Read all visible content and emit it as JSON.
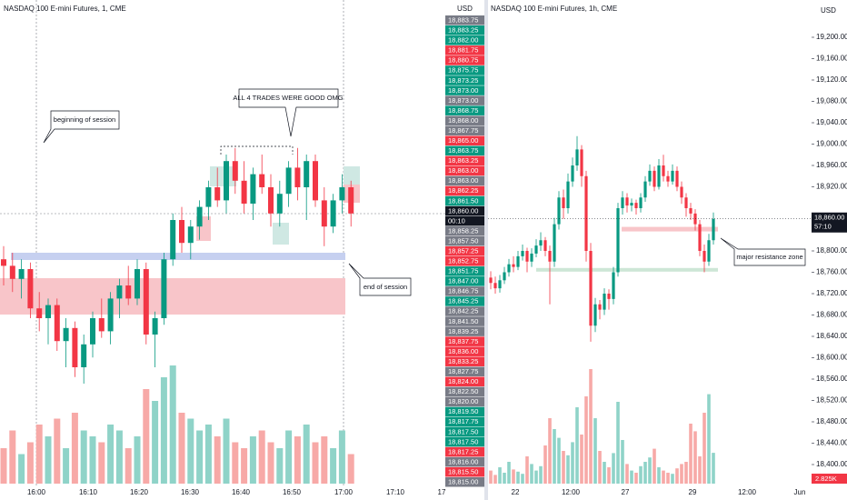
{
  "left": {
    "title": "NASDAQ 100 E-mini Futures, 1, CME",
    "currency": "USD",
    "annotations": [
      "beginning of session",
      "ALL 4 TRADES WERE GOOD OMG",
      "end of session"
    ],
    "xlabels": [
      "16:00",
      "16:10",
      "16:20",
      "16:30",
      "16:40",
      "16:50",
      "17:00",
      "17:10",
      "17"
    ],
    "ladder": [
      "18,883.75",
      "18,883.25",
      "18,882.00",
      "18,881.75",
      "18,880.75",
      "18,875.75",
      "18,873.25",
      "18,873.00",
      "18,873.00",
      "18,868.75",
      "18,868.00",
      "18,867.75",
      "18,865.00",
      "18,863.75",
      "18,863.25",
      "18,863.00",
      "18,863.00",
      "18,862.25",
      "18,861.50",
      "18,860.00",
      "00:10",
      "18,858.25",
      "18,857.50",
      "18,857.25",
      "18,852.75",
      "18,851.75",
      "18,847.00",
      "18,846.75",
      "18,845.25",
      "18,842.25",
      "18,841.50",
      "18,839.25",
      "18,837.75",
      "18,836.00",
      "18,833.25",
      "18,827.75",
      "18,824.00",
      "18,822.50",
      "18,820.00",
      "18,819.50",
      "18,817.75",
      "18,817.50",
      "18,817.50",
      "18,817.25",
      "18,816.00",
      "18,815.50",
      "18,815.00"
    ],
    "ladder_colors": [
      "#787b86",
      "#089981",
      "#089981",
      "#f23645",
      "#f23645",
      "#089981",
      "#089981",
      "#089981",
      "#787b86",
      "#089981",
      "#787b86",
      "#787b86",
      "#f23645",
      "#089981",
      "#f23645",
      "#f23645",
      "#787b86",
      "#f23645",
      "#089981",
      "#131722",
      "#131722",
      "#787b86",
      "#787b86",
      "#f23645",
      "#f23645",
      "#089981",
      "#089981",
      "#787b86",
      "#089981",
      "#787b86",
      "#787b86",
      "#787b86",
      "#f23645",
      "#f23645",
      "#f23645",
      "#787b86",
      "#f23645",
      "#787b86",
      "#787b86",
      "#089981",
      "#089981",
      "#089981",
      "#089981",
      "#f23645",
      "#787b86",
      "#f23645",
      "#787b86"
    ],
    "up_color": "#089981",
    "down_color": "#f23645",
    "candles": [
      [
        18848,
        18852,
        18840,
        18846
      ],
      [
        18846,
        18850,
        18838,
        18842
      ],
      [
        18842,
        18848,
        18836,
        18845
      ],
      [
        18845,
        18847,
        18830,
        18833
      ],
      [
        18833,
        18838,
        18826,
        18830
      ],
      [
        18830,
        18836,
        18822,
        18834
      ],
      [
        18834,
        18836,
        18820,
        18823
      ],
      [
        18823,
        18830,
        18815,
        18827
      ],
      [
        18827,
        18829,
        18812,
        18815
      ],
      [
        18815,
        18825,
        18810,
        18822
      ],
      [
        18822,
        18832,
        18818,
        18830
      ],
      [
        18830,
        18836,
        18824,
        18826
      ],
      [
        18826,
        18838,
        18822,
        18836
      ],
      [
        18836,
        18842,
        18830,
        18840
      ],
      [
        18840,
        18846,
        18834,
        18836
      ],
      [
        18836,
        18848,
        18834,
        18845
      ],
      [
        18845,
        18847,
        18822,
        18825
      ],
      [
        18825,
        18832,
        18815,
        18830
      ],
      [
        18830,
        18850,
        18828,
        18848
      ],
      [
        18848,
        18862,
        18846,
        18860
      ],
      [
        18860,
        18864,
        18850,
        18853
      ],
      [
        18853,
        18860,
        18848,
        18858
      ],
      [
        18858,
        18866,
        18854,
        18864
      ],
      [
        18864,
        18872,
        18860,
        18870
      ],
      [
        18870,
        18876,
        18864,
        18866
      ],
      [
        18866,
        18880,
        18862,
        18878
      ],
      [
        18878,
        18882,
        18868,
        18872
      ],
      [
        18872,
        18878,
        18862,
        18865
      ],
      [
        18865,
        18876,
        18860,
        18874
      ],
      [
        18874,
        18880,
        18868,
        18870
      ],
      [
        18870,
        18874,
        18858,
        18862
      ],
      [
        18862,
        18872,
        18858,
        18868
      ],
      [
        18868,
        18878,
        18864,
        18876
      ],
      [
        18876,
        18882,
        18866,
        18870
      ],
      [
        18870,
        18880,
        18860,
        18878
      ],
      [
        18878,
        18880,
        18864,
        18866
      ],
      [
        18866,
        18870,
        18852,
        18858
      ],
      [
        18858,
        18868,
        18856,
        18866
      ],
      [
        18866,
        18874,
        18862,
        18870
      ],
      [
        18870,
        18872,
        18858,
        18862
      ]
    ],
    "volume": [
      30,
      45,
      25,
      35,
      50,
      40,
      55,
      30,
      60,
      45,
      40,
      35,
      50,
      45,
      30,
      40,
      80,
      70,
      90,
      100,
      60,
      55,
      45,
      50,
      40,
      55,
      35,
      30,
      40,
      45,
      35,
      30,
      45,
      40,
      50,
      35,
      40,
      30,
      45,
      25
    ]
  },
  "right": {
    "title": "NASDAQ 100 E-mini Futures, 1h, CME",
    "currency": "USD",
    "annotation": "major resistance zone",
    "price": 18860,
    "price_label": "18,860.00",
    "countdown": "57:10",
    "volume_label": "2.825K",
    "xlabels": [
      "22",
      "12:00",
      "27",
      "29",
      "12:00",
      "Jun"
    ],
    "yticks": [
      {
        "value": 19200,
        "label": "19,200.00"
      },
      {
        "value": 19160,
        "label": "19,160.00"
      },
      {
        "value": 19120,
        "label": "19,120.00"
      },
      {
        "value": 19080,
        "label": "19,080.00"
      },
      {
        "value": 19040,
        "label": "19,040.00"
      },
      {
        "value": 19000,
        "label": "19,000.00"
      },
      {
        "value": 18960,
        "label": "18,960.00"
      },
      {
        "value": 18920,
        "label": "18,920.00"
      },
      {
        "value": 18800,
        "label": "18,800.00"
      },
      {
        "value": 18760,
        "label": "18,760.00"
      },
      {
        "value": 18720,
        "label": "18,720.00"
      },
      {
        "value": 18680,
        "label": "18,680.00"
      },
      {
        "value": 18640,
        "label": "18,640.00"
      },
      {
        "value": 18600,
        "label": "18,600.00"
      },
      {
        "value": 18560,
        "label": "18,560.00"
      },
      {
        "value": 18520,
        "label": "18,520.00"
      },
      {
        "value": 18480,
        "label": "18,480.00"
      },
      {
        "value": 18440,
        "label": "18,440.00"
      },
      {
        "value": 18400,
        "label": "18,400.00"
      }
    ],
    "candles": [
      [
        18750,
        18762,
        18728,
        18740
      ],
      [
        18740,
        18752,
        18720,
        18730
      ],
      [
        18730,
        18755,
        18722,
        18745
      ],
      [
        18745,
        18770,
        18738,
        18760
      ],
      [
        18760,
        18785,
        18752,
        18775
      ],
      [
        18775,
        18790,
        18760,
        18770
      ],
      [
        18770,
        18800,
        18764,
        18790
      ],
      [
        18790,
        18812,
        18782,
        18800
      ],
      [
        18800,
        18806,
        18760,
        18780
      ],
      [
        18780,
        18805,
        18770,
        18795
      ],
      [
        18795,
        18822,
        18788,
        18810
      ],
      [
        18810,
        18835,
        18800,
        18820
      ],
      [
        18820,
        18826,
        18790,
        18800
      ],
      [
        18800,
        18810,
        18700,
        18780
      ],
      [
        18780,
        18862,
        18770,
        18850
      ],
      [
        18850,
        18912,
        18840,
        18900
      ],
      [
        18900,
        18915,
        18860,
        18880
      ],
      [
        18880,
        18945,
        18870,
        18930
      ],
      [
        18930,
        18975,
        18920,
        18960
      ],
      [
        18960,
        19015,
        18950,
        18990
      ],
      [
        18990,
        18998,
        18920,
        18940
      ],
      [
        18940,
        18950,
        18780,
        18800
      ],
      [
        18800,
        18815,
        18630,
        18660
      ],
      [
        18660,
        18712,
        18648,
        18700
      ],
      [
        18700,
        18708,
        18672,
        18690
      ],
      [
        18690,
        18730,
        18680,
        18720
      ],
      [
        18720,
        18728,
        18690,
        18710
      ],
      [
        18710,
        18770,
        18700,
        18760
      ],
      [
        18760,
        18890,
        18752,
        18880
      ],
      [
        18880,
        18912,
        18868,
        18900
      ],
      [
        18900,
        18908,
        18872,
        18885
      ],
      [
        18885,
        18898,
        18874,
        18890
      ],
      [
        18890,
        18896,
        18868,
        18880
      ],
      [
        18880,
        18908,
        18872,
        18900
      ],
      [
        18900,
        18940,
        18892,
        18930
      ],
      [
        18930,
        18962,
        18922,
        18950
      ],
      [
        18950,
        18958,
        18912,
        18920
      ],
      [
        18920,
        18972,
        18915,
        18960
      ],
      [
        18960,
        18980,
        18930,
        18940
      ],
      [
        18940,
        18950,
        18920,
        18930
      ],
      [
        18930,
        18962,
        18924,
        18950
      ],
      [
        18950,
        18958,
        18912,
        18920
      ],
      [
        18920,
        18930,
        18888,
        18900
      ],
      [
        18900,
        18908,
        18864,
        18880
      ],
      [
        18880,
        18890,
        18858,
        18870
      ],
      [
        18870,
        18878,
        18838,
        18850
      ],
      [
        18850,
        18858,
        18790,
        18800
      ],
      [
        18800,
        18812,
        18760,
        18780
      ],
      [
        18780,
        18832,
        18772,
        18820
      ],
      [
        18820,
        18872,
        18812,
        18860
      ]
    ],
    "volume": [
      1.2,
      0.8,
      1.5,
      1,
      2,
      1.3,
      1.1,
      0.9,
      2.5,
      1.8,
      1.2,
      1.6,
      3.5,
      6,
      5,
      4.2,
      3,
      2.6,
      3.8,
      7,
      4.5,
      8,
      10.5,
      6,
      3,
      2,
      1.5,
      2.8,
      7.5,
      4,
      1.8,
      1.2,
      1,
      1.6,
      2,
      2.4,
      3.2,
      1.5,
      1.2,
      1,
      0.9,
      1.4,
      1.8,
      2,
      5.5,
      4.8,
      2.5,
      6.5,
      8.2,
      2.825
    ]
  }
}
